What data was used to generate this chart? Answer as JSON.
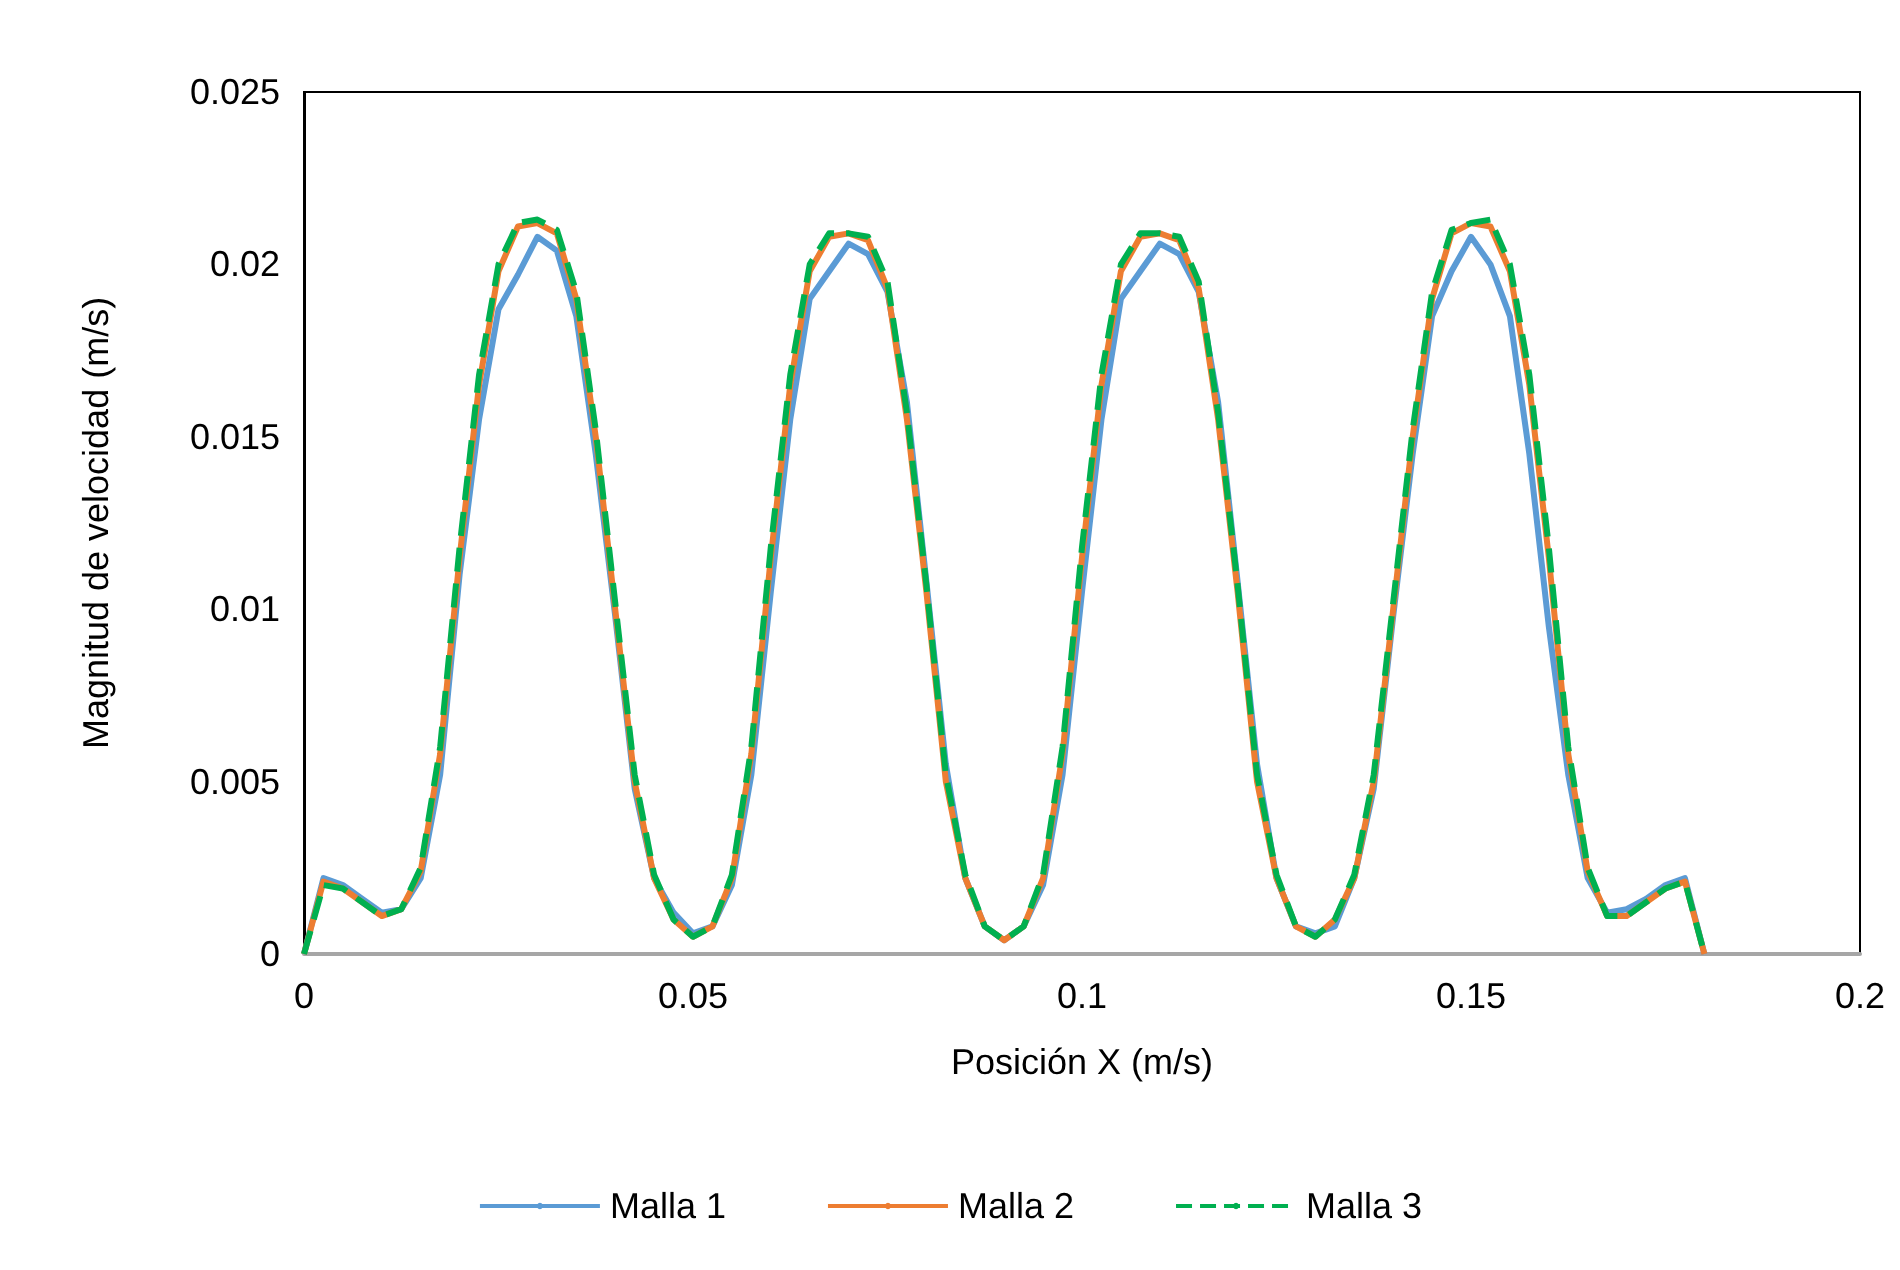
{
  "chart_data": {
    "type": "line",
    "xlabel": "Posición X (m/s)",
    "ylabel": "Magnitud de velocidad (m/s)",
    "x": [
      0,
      0.0025,
      0.005,
      0.0075,
      0.01,
      0.0125,
      0.015,
      0.0175,
      0.02,
      0.0225,
      0.025,
      0.0275,
      0.03,
      0.0325,
      0.035,
      0.0375,
      0.04,
      0.0425,
      0.045,
      0.0475,
      0.05,
      0.0525,
      0.055,
      0.0575,
      0.06,
      0.0625,
      0.065,
      0.0675,
      0.07,
      0.0725,
      0.075,
      0.0775,
      0.08,
      0.0825,
      0.085,
      0.0875,
      0.09,
      0.0925,
      0.095,
      0.0975,
      0.1,
      0.1025,
      0.105,
      0.1075,
      0.11,
      0.1125,
      0.115,
      0.1175,
      0.12,
      0.1225,
      0.125,
      0.1275,
      0.13,
      0.1325,
      0.135,
      0.1375,
      0.14,
      0.1425,
      0.145,
      0.1475,
      0.15,
      0.1525,
      0.155,
      0.1575,
      0.16,
      0.1625,
      0.165,
      0.1675,
      0.17,
      0.1725,
      0.175,
      0.1775,
      0.18
    ],
    "series": [
      {
        "name": "Malla 1",
        "color": "#5b9bd5",
        "line_style": "solid",
        "values": [
          0,
          0.0022,
          0.002,
          0.0016,
          0.0012,
          0.0013,
          0.0022,
          0.0052,
          0.011,
          0.0155,
          0.0187,
          0.0197,
          0.0208,
          0.0204,
          0.0185,
          0.0145,
          0.0098,
          0.0048,
          0.0022,
          0.0012,
          0.0006,
          0.0008,
          0.002,
          0.0052,
          0.0105,
          0.0155,
          0.019,
          0.0198,
          0.0206,
          0.0203,
          0.0192,
          0.016,
          0.0108,
          0.0055,
          0.0022,
          0.0008,
          0.0004,
          0.0008,
          0.002,
          0.0052,
          0.0105,
          0.0155,
          0.019,
          0.0198,
          0.0206,
          0.0203,
          0.0192,
          0.016,
          0.0108,
          0.0055,
          0.0022,
          0.0008,
          0.0006,
          0.0008,
          0.0022,
          0.0048,
          0.0098,
          0.0145,
          0.0185,
          0.0198,
          0.0208,
          0.02,
          0.0185,
          0.0145,
          0.0095,
          0.0052,
          0.0022,
          0.0012,
          0.0013,
          0.0016,
          0.002,
          0.0022,
          0
        ]
      },
      {
        "name": "Malla 2",
        "color": "#ed7d31",
        "line_style": "solid",
        "values": [
          0,
          0.0021,
          0.0019,
          0.0015,
          0.0011,
          0.0013,
          0.0024,
          0.0058,
          0.0115,
          0.0165,
          0.0198,
          0.0211,
          0.0212,
          0.0209,
          0.019,
          0.015,
          0.01,
          0.005,
          0.0022,
          0.001,
          0.0005,
          0.0008,
          0.0022,
          0.0058,
          0.0115,
          0.0165,
          0.0198,
          0.0208,
          0.0209,
          0.0207,
          0.0193,
          0.0155,
          0.0105,
          0.005,
          0.0022,
          0.0008,
          0.0004,
          0.0008,
          0.0022,
          0.0058,
          0.0115,
          0.0165,
          0.0198,
          0.0208,
          0.0209,
          0.0207,
          0.0193,
          0.0155,
          0.0105,
          0.005,
          0.0022,
          0.0008,
          0.0005,
          0.001,
          0.0022,
          0.005,
          0.01,
          0.015,
          0.019,
          0.0209,
          0.0212,
          0.0211,
          0.0198,
          0.0165,
          0.0115,
          0.0058,
          0.0024,
          0.0011,
          0.0011,
          0.0015,
          0.0019,
          0.0021,
          0
        ]
      },
      {
        "name": "Malla 3",
        "color": "#00b050",
        "line_style": "dashed",
        "values": [
          0,
          0.002,
          0.0019,
          0.0015,
          0.0011,
          0.0013,
          0.0025,
          0.006,
          0.0118,
          0.0168,
          0.02,
          0.0212,
          0.0213,
          0.021,
          0.0192,
          0.0152,
          0.0102,
          0.0052,
          0.0023,
          0.001,
          0.0005,
          0.0008,
          0.0023,
          0.006,
          0.0118,
          0.0168,
          0.02,
          0.0209,
          0.0209,
          0.0208,
          0.0195,
          0.0157,
          0.0107,
          0.0052,
          0.0023,
          0.0008,
          0.0004,
          0.0008,
          0.0023,
          0.006,
          0.0118,
          0.0168,
          0.02,
          0.0209,
          0.0209,
          0.0208,
          0.0195,
          0.0157,
          0.0107,
          0.0052,
          0.0023,
          0.0008,
          0.0005,
          0.001,
          0.0023,
          0.0052,
          0.0102,
          0.0152,
          0.0192,
          0.021,
          0.0212,
          0.0213,
          0.02,
          0.0168,
          0.0118,
          0.006,
          0.0025,
          0.0011,
          0.0011,
          0.0015,
          0.0019,
          0.0021,
          0
        ]
      }
    ],
    "xlim": [
      0,
      0.2
    ],
    "xticks": [
      0,
      0.05,
      0.1,
      0.15,
      0.2
    ],
    "ylim": [
      0,
      0.025
    ],
    "yticks": [
      0,
      0.005,
      0.01,
      0.015,
      0.02,
      0.025
    ],
    "grid": false,
    "legend": "bottom",
    "marker": "none"
  }
}
